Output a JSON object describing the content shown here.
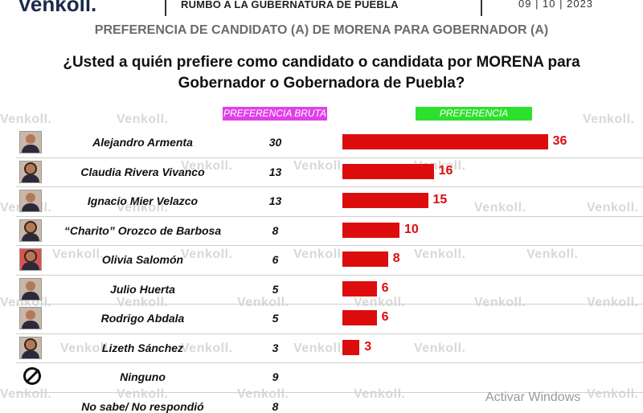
{
  "header": {
    "logo": "enkoll.",
    "title": "RUMBO A LA GUBERNATURA DE PUEBLA",
    "date": "09 | 10 | 2023"
  },
  "subtitle": "PREFERENCIA DE CANDIDATO (A) DE MORENA PARA GOBERNADOR (A)",
  "question_line1": "¿Usted a quién prefiere como candidato o candidata por MORENA para",
  "question_line2": "Gobernador o Gobernadora de Puebla?",
  "labels": {
    "bruta": "PREFERENCIA BRUTA",
    "efectiva": "PREFERENCIA EFECTIVA"
  },
  "watermark": "enkoll.",
  "windows_notice": "Activar Windows",
  "colors": {
    "bar": "#dd0d0d",
    "bruta_label_bg": "#e040e8",
    "efectiva_label_bg": "#2ee02e"
  },
  "chart_data": {
    "type": "bar",
    "orientation": "horizontal",
    "categories": [
      "Alejandro Armenta",
      "Claudia Rivera Vivanco",
      "Ignacio Mier Velazco",
      "“Charito” Orozco de Barbosa",
      "Olivia Salomón",
      "Julio Huerta",
      "Rodrigo Abdala",
      "Lizeth Sánchez",
      "Ninguno",
      "No sabe/ No respondió"
    ],
    "series": [
      {
        "name": "PREFERENCIA BRUTA",
        "values": [
          30,
          13,
          13,
          8,
          6,
          5,
          5,
          3,
          9,
          8
        ]
      },
      {
        "name": "PREFERENCIA EFECTIVA",
        "values": [
          36,
          16,
          15,
          10,
          8,
          6,
          6,
          3,
          null,
          null
        ]
      }
    ]
  }
}
